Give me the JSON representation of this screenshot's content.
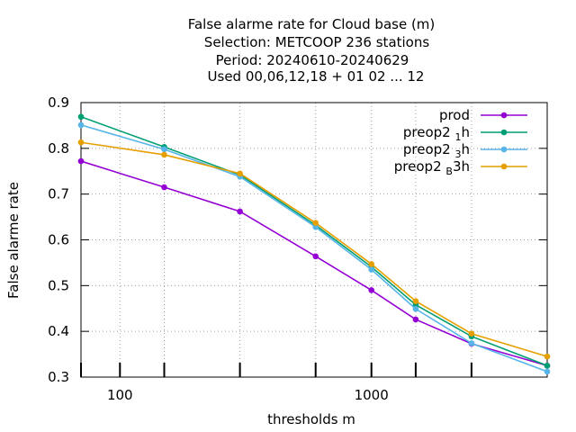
{
  "chart_data": {
    "type": "line",
    "title_lines": [
      "False alarme rate  for Cloud base (m)",
      "Selection: METCOOP    236 stations",
      "Period: 20240610-20240629",
      "Used  00,06,12,18 + 01 02 ... 12"
    ],
    "xlabel": "thresholds m",
    "ylabel": "False alarme rate",
    "xscale": "log",
    "xlim": [
      70,
      5000
    ],
    "ylim": [
      0.3,
      0.9
    ],
    "yticks": [
      0.3,
      0.4,
      0.5,
      0.6,
      0.7,
      0.8,
      0.9
    ],
    "ytick_labels": [
      "0.3",
      "0.4",
      "0.5",
      "0.6",
      "0.7",
      "0.8",
      "0.9"
    ],
    "xticks_major": [
      100,
      1000
    ],
    "xtick_labels": [
      "100",
      "1000"
    ],
    "xticks_minor": [
      150,
      300,
      600,
      1500,
      2500
    ],
    "x": [
      70,
      150,
      300,
      600,
      1000,
      1500,
      2500,
      5000
    ],
    "legend_position": "top-right",
    "grid": true,
    "series": [
      {
        "name": "prod",
        "legend": {
          "main": "prod",
          "sub": "",
          "tail": ""
        },
        "color": "#9400d3",
        "values": [
          0.772,
          0.715,
          0.662,
          0.564,
          0.49,
          0.426,
          0.373,
          0.325
        ]
      },
      {
        "name": "preop2 1 h",
        "legend": {
          "main": "preop2 ",
          "sub": "1",
          "tail": "h"
        },
        "color": "#009e73",
        "values": [
          0.869,
          0.803,
          0.742,
          0.632,
          0.541,
          0.458,
          0.389,
          0.325
        ]
      },
      {
        "name": "preop2 3 h",
        "legend": {
          "main": "preop2 ",
          "sub": "3",
          "tail": "h"
        },
        "color": "#56b4e9",
        "values": [
          0.851,
          0.798,
          0.738,
          0.628,
          0.535,
          0.449,
          0.374,
          0.312
        ]
      },
      {
        "name": "preop2 B 3h",
        "legend": {
          "main": "preop2 ",
          "sub": "B",
          "tail": "3h"
        },
        "color": "#e69f00",
        "values": [
          0.813,
          0.786,
          0.745,
          0.637,
          0.547,
          0.466,
          0.395,
          0.345
        ]
      }
    ]
  }
}
